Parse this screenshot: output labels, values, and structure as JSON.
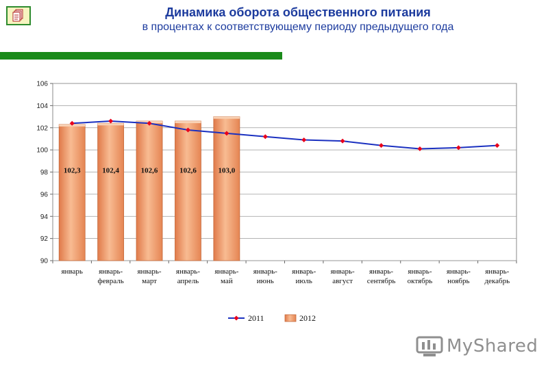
{
  "header": {
    "title": "Динамика оборота общественного питания",
    "subtitle": "в процентах к соответствующему периоду предыдущего года"
  },
  "colors": {
    "title": "#1c3b9e",
    "accent_bar": "#1a8a1a",
    "line_2011": "#1a30c0",
    "marker_2011": "#e8001c",
    "bar_2012": "#f0a070"
  },
  "icons": [
    "document-stack-icon",
    "mysharede-logo-icon"
  ],
  "watermark": {
    "text": "MyShared"
  },
  "chart_data": {
    "type": "bar+line",
    "categories": [
      [
        "январь"
      ],
      [
        "январь-",
        "февраль"
      ],
      [
        "январь-",
        "март"
      ],
      [
        "январь-",
        "апрель"
      ],
      [
        "январь-",
        "май"
      ],
      [
        "январь-",
        "июнь"
      ],
      [
        "январь-",
        "июль"
      ],
      [
        "январь-",
        "август"
      ],
      [
        "январь-",
        "сентябрь"
      ],
      [
        "январь-",
        "октябрь"
      ],
      [
        "январь-",
        "ноябрь"
      ],
      [
        "январь-",
        "декабрь"
      ]
    ],
    "series": [
      {
        "name": "2011",
        "type": "line",
        "values": [
          102.4,
          102.6,
          102.4,
          101.8,
          101.5,
          101.2,
          100.9,
          100.8,
          100.4,
          100.1,
          100.2,
          100.4
        ]
      },
      {
        "name": "2012",
        "type": "bar",
        "values": [
          102.3,
          102.4,
          102.6,
          102.6,
          103.0,
          null,
          null,
          null,
          null,
          null,
          null,
          null
        ],
        "labels": [
          "102,3",
          "102,4",
          "102,6",
          "102,6",
          "103,0"
        ]
      }
    ],
    "ylim": [
      90,
      106
    ],
    "yticks": [
      90,
      92,
      94,
      96,
      98,
      100,
      102,
      104,
      106
    ],
    "grid": true,
    "legend": "bottom"
  }
}
